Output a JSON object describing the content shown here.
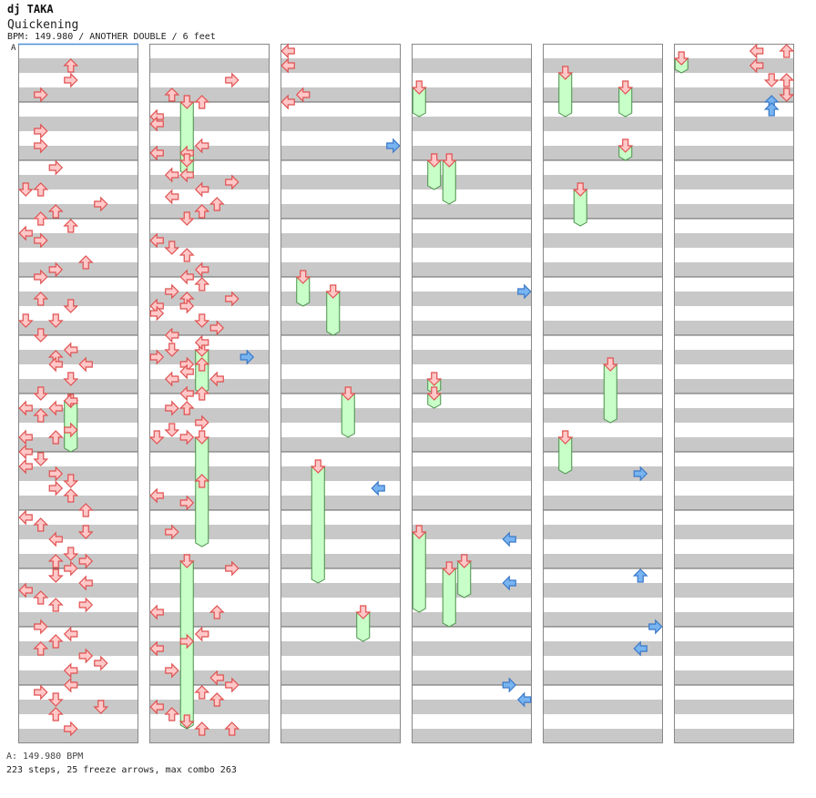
{
  "chart": {
    "artist": "dj TAKA",
    "title": "Quickening",
    "info": "BPM: 149.980 / ANOTHER DOUBLE / 6 feet",
    "bpm_marker": "A",
    "footer_bpm": "A: 149.980 BPM",
    "footer_stats": "223 steps, 25 freeze arrows, max combo 263"
  },
  "colors": {
    "stripe": "#c8c8c8",
    "border": "#888888",
    "measure_line": "#666666",
    "bpm_line": "#4a90d9",
    "arrow_fill": "#ffc8c8",
    "arrow_stroke": "#e05050",
    "blue_fill": "#78b4f0",
    "blue_stroke": "#3a78c8",
    "freeze_fill": "#c8ffc8",
    "freeze_stroke": "#489048"
  },
  "lane_directions": [
    "left",
    "down",
    "up",
    "right",
    "left",
    "down",
    "up",
    "right"
  ],
  "chart_data": {
    "type": "step-chart",
    "columns": 6,
    "beats_per_column": 48,
    "lanes": 8,
    "arrows": [
      [
        2,
        0.5,
        0,
        "l"
      ],
      [
        2,
        1.5,
        0,
        "l"
      ],
      [
        0,
        1.5,
        3,
        "u"
      ],
      [
        0,
        2.5,
        3,
        "r"
      ],
      [
        1,
        2.5,
        5,
        "r"
      ],
      [
        0,
        3.5,
        1,
        "r"
      ],
      [
        1,
        3.5,
        1,
        "u"
      ],
      [
        2,
        3.5,
        1,
        "l"
      ],
      [
        2,
        4,
        0,
        "l"
      ],
      [
        1,
        4,
        3,
        "u"
      ],
      [
        1,
        5,
        0,
        "l"
      ],
      [
        1,
        5.5,
        0,
        "l"
      ],
      [
        0,
        6,
        1,
        "r"
      ],
      [
        0,
        7,
        1,
        "r"
      ],
      [
        1,
        7,
        3,
        "l"
      ],
      [
        1,
        7.5,
        2,
        "l"
      ],
      [
        1,
        7.5,
        0,
        "l"
      ],
      [
        1,
        8,
        2,
        "d"
      ],
      [
        0,
        8.5,
        2,
        "r"
      ],
      [
        1,
        9,
        1,
        "l"
      ],
      [
        1,
        9,
        2,
        "l"
      ],
      [
        1,
        9.5,
        5,
        "r"
      ],
      [
        0,
        10,
        0,
        "d"
      ],
      [
        1,
        10,
        3,
        "l"
      ],
      [
        0,
        10,
        1,
        "u"
      ],
      [
        1,
        10.5,
        1,
        "l"
      ],
      [
        0,
        11,
        5,
        "r"
      ],
      [
        1,
        11,
        4,
        "u"
      ],
      [
        0,
        11.5,
        2,
        "u"
      ],
      [
        1,
        11.5,
        3,
        "u"
      ],
      [
        0,
        12,
        1,
        "u"
      ],
      [
        1,
        12,
        2,
        "d"
      ],
      [
        0,
        12.5,
        3,
        "u"
      ],
      [
        0,
        13,
        0,
        "l"
      ],
      [
        0,
        13.5,
        1,
        "r"
      ],
      [
        1,
        13.5,
        0,
        "l"
      ],
      [
        1,
        14,
        1,
        "d"
      ],
      [
        1,
        14.5,
        2,
        "u"
      ],
      [
        0,
        15,
        4,
        "u"
      ],
      [
        0,
        15.5,
        2,
        "r"
      ],
      [
        1,
        15.5,
        3,
        "l"
      ],
      [
        0,
        16,
        1,
        "r"
      ],
      [
        1,
        16,
        2,
        "l"
      ],
      [
        1,
        16.5,
        3,
        "u"
      ],
      [
        1,
        17,
        1,
        "r"
      ],
      [
        0,
        17.5,
        1,
        "u"
      ],
      [
        1,
        17.5,
        2,
        "u"
      ],
      [
        1,
        17.5,
        5,
        "r"
      ],
      [
        0,
        18,
        3,
        "d"
      ],
      [
        1,
        18,
        2,
        "r"
      ],
      [
        1,
        18,
        0,
        "l"
      ],
      [
        1,
        18.5,
        0,
        "r"
      ],
      [
        0,
        19,
        0,
        "d"
      ],
      [
        1,
        19,
        3,
        "d"
      ],
      [
        0,
        19,
        2,
        "d"
      ],
      [
        1,
        19.5,
        4,
        "r"
      ],
      [
        0,
        20,
        1,
        "d"
      ],
      [
        1,
        20,
        1,
        "l"
      ],
      [
        1,
        20.5,
        3,
        "l"
      ],
      [
        0,
        21,
        3,
        "l"
      ],
      [
        1,
        21,
        1,
        "d"
      ],
      [
        0,
        21.5,
        2,
        "u"
      ],
      [
        1,
        21.5,
        0,
        "r"
      ],
      [
        0,
        22,
        2,
        "l"
      ],
      [
        0,
        22,
        4,
        "l"
      ],
      [
        1,
        22,
        3,
        "u"
      ],
      [
        1,
        22,
        2,
        "r"
      ],
      [
        1,
        22.5,
        2,
        "l"
      ],
      [
        0,
        23,
        3,
        "d"
      ],
      [
        1,
        23,
        1,
        "l"
      ],
      [
        1,
        23,
        4,
        "l"
      ],
      [
        0,
        24,
        1,
        "d"
      ],
      [
        1,
        24,
        3,
        "u"
      ],
      [
        1,
        24,
        2,
        "l"
      ],
      [
        0,
        24.5,
        3,
        "l"
      ],
      [
        0,
        25,
        0,
        "l"
      ],
      [
        1,
        25,
        1,
        "r"
      ],
      [
        1,
        25,
        2,
        "u"
      ],
      [
        0,
        25,
        2,
        "l"
      ],
      [
        0,
        25.5,
        1,
        "u"
      ],
      [
        1,
        26,
        3,
        "r"
      ],
      [
        0,
        26.5,
        3,
        "r"
      ],
      [
        1,
        26.5,
        1,
        "d"
      ],
      [
        0,
        27,
        0,
        "l"
      ],
      [
        0,
        27,
        2,
        "u"
      ],
      [
        1,
        27,
        0,
        "d"
      ],
      [
        1,
        27,
        2,
        "r"
      ],
      [
        0,
        28,
        0,
        "l"
      ],
      [
        0,
        28.5,
        1,
        "d"
      ],
      [
        0,
        29,
        0,
        "l"
      ],
      [
        0,
        29.5,
        2,
        "r"
      ],
      [
        0,
        30,
        3,
        "d"
      ],
      [
        1,
        30,
        3,
        "u"
      ],
      [
        0,
        30.5,
        2,
        "r"
      ],
      [
        0,
        31,
        3,
        "u"
      ],
      [
        1,
        31,
        0,
        "l"
      ],
      [
        1,
        31.5,
        2,
        "r"
      ],
      [
        0,
        32,
        4,
        "u"
      ],
      [
        0,
        32.5,
        0,
        "l"
      ],
      [
        0,
        33,
        1,
        "u"
      ],
      [
        0,
        33.5,
        4,
        "d"
      ],
      [
        1,
        33.5,
        1,
        "r"
      ],
      [
        0,
        34,
        2,
        "l"
      ],
      [
        0,
        35,
        3,
        "d"
      ],
      [
        0,
        35.5,
        2,
        "u"
      ],
      [
        0,
        35.5,
        4,
        "r"
      ],
      [
        0,
        36,
        3,
        "r"
      ],
      [
        1,
        36,
        5,
        "r"
      ],
      [
        0,
        36.5,
        2,
        "d"
      ],
      [
        0,
        37,
        4,
        "l"
      ],
      [
        0,
        37.5,
        0,
        "l"
      ],
      [
        0,
        38,
        1,
        "u"
      ],
      [
        0,
        38.5,
        2,
        "u"
      ],
      [
        0,
        38.5,
        4,
        "r"
      ],
      [
        1,
        39,
        0,
        "l"
      ],
      [
        1,
        39,
        4,
        "u"
      ],
      [
        0,
        40,
        1,
        "r"
      ],
      [
        0,
        40.5,
        3,
        "l"
      ],
      [
        1,
        40.5,
        3,
        "l"
      ],
      [
        0,
        41,
        2,
        "u"
      ],
      [
        1,
        41,
        2,
        "r"
      ],
      [
        0,
        41.5,
        1,
        "u"
      ],
      [
        1,
        41.5,
        0,
        "l"
      ],
      [
        0,
        42,
        4,
        "r"
      ],
      [
        0,
        42.5,
        5,
        "r"
      ],
      [
        1,
        43,
        1,
        "r"
      ],
      [
        0,
        43,
        3,
        "l"
      ],
      [
        1,
        43.5,
        4,
        "l"
      ],
      [
        1,
        44,
        5,
        "r"
      ],
      [
        0,
        44,
        3,
        "l"
      ],
      [
        0,
        44.5,
        1,
        "r"
      ],
      [
        1,
        44.5,
        3,
        "u"
      ],
      [
        1,
        45,
        4,
        "u"
      ],
      [
        0,
        45,
        2,
        "d"
      ],
      [
        0,
        45.5,
        5,
        "d"
      ],
      [
        1,
        45.5,
        0,
        "l"
      ],
      [
        1,
        46,
        1,
        "u"
      ],
      [
        0,
        46,
        2,
        "u"
      ],
      [
        1,
        46.5,
        2,
        "d"
      ],
      [
        1,
        47,
        5,
        "u"
      ],
      [
        0,
        47,
        3,
        "r"
      ],
      [
        1,
        47,
        3,
        "u"
      ]
    ],
    "freezes": [
      [
        1,
        4,
        9,
        2
      ],
      [
        1,
        21,
        24,
        3
      ],
      [
        0,
        24.5,
        28,
        3
      ],
      [
        1,
        27,
        34.5,
        3
      ],
      [
        1,
        35.5,
        47,
        2
      ],
      [
        2,
        16,
        18,
        1
      ],
      [
        2,
        17,
        20,
        3
      ],
      [
        2,
        29,
        37,
        2
      ],
      [
        2,
        39,
        41,
        5
      ],
      [
        2,
        24,
        27,
        4
      ],
      [
        3,
        3,
        5,
        0
      ],
      [
        3,
        8,
        10,
        1
      ],
      [
        3,
        8,
        11,
        2
      ],
      [
        3,
        33.5,
        39,
        0
      ],
      [
        3,
        35.5,
        38,
        3
      ],
      [
        3,
        23,
        24,
        1
      ],
      [
        3,
        24,
        25,
        1
      ],
      [
        3,
        36,
        40,
        2
      ],
      [
        4,
        2,
        5,
        1
      ],
      [
        4,
        3,
        5,
        5
      ],
      [
        4,
        7,
        8,
        5
      ],
      [
        4,
        10,
        12.5,
        2
      ],
      [
        4,
        22,
        26,
        4
      ],
      [
        4,
        27,
        29.5,
        1
      ],
      [
        5,
        1,
        2,
        0
      ]
    ],
    "blue_arrows": [
      [
        1,
        21.5,
        6,
        "r"
      ],
      [
        2,
        30.5,
        6,
        "l"
      ],
      [
        3,
        34,
        6,
        "l"
      ],
      [
        4,
        29.5,
        6,
        "r"
      ],
      [
        2,
        7,
        7,
        "r"
      ],
      [
        3,
        17,
        7,
        "r"
      ],
      [
        4,
        36.5,
        6,
        "u"
      ],
      [
        3,
        45,
        7,
        "l"
      ],
      [
        4,
        40,
        7,
        "r"
      ],
      [
        3,
        44,
        6,
        "r"
      ],
      [
        3,
        37,
        6,
        "l"
      ],
      [
        4,
        41.5,
        6,
        "l"
      ],
      [
        5,
        4,
        6,
        "u"
      ],
      [
        5,
        4.5,
        6,
        "u"
      ]
    ],
    "stream_col5": [
      [
        0.5,
        5,
        "l"
      ],
      [
        0.5,
        7,
        "u"
      ],
      [
        1.5,
        5,
        "l"
      ],
      [
        2.5,
        6,
        "d"
      ],
      [
        2.5,
        7,
        "u"
      ],
      [
        3.5,
        7,
        "d"
      ]
    ]
  }
}
